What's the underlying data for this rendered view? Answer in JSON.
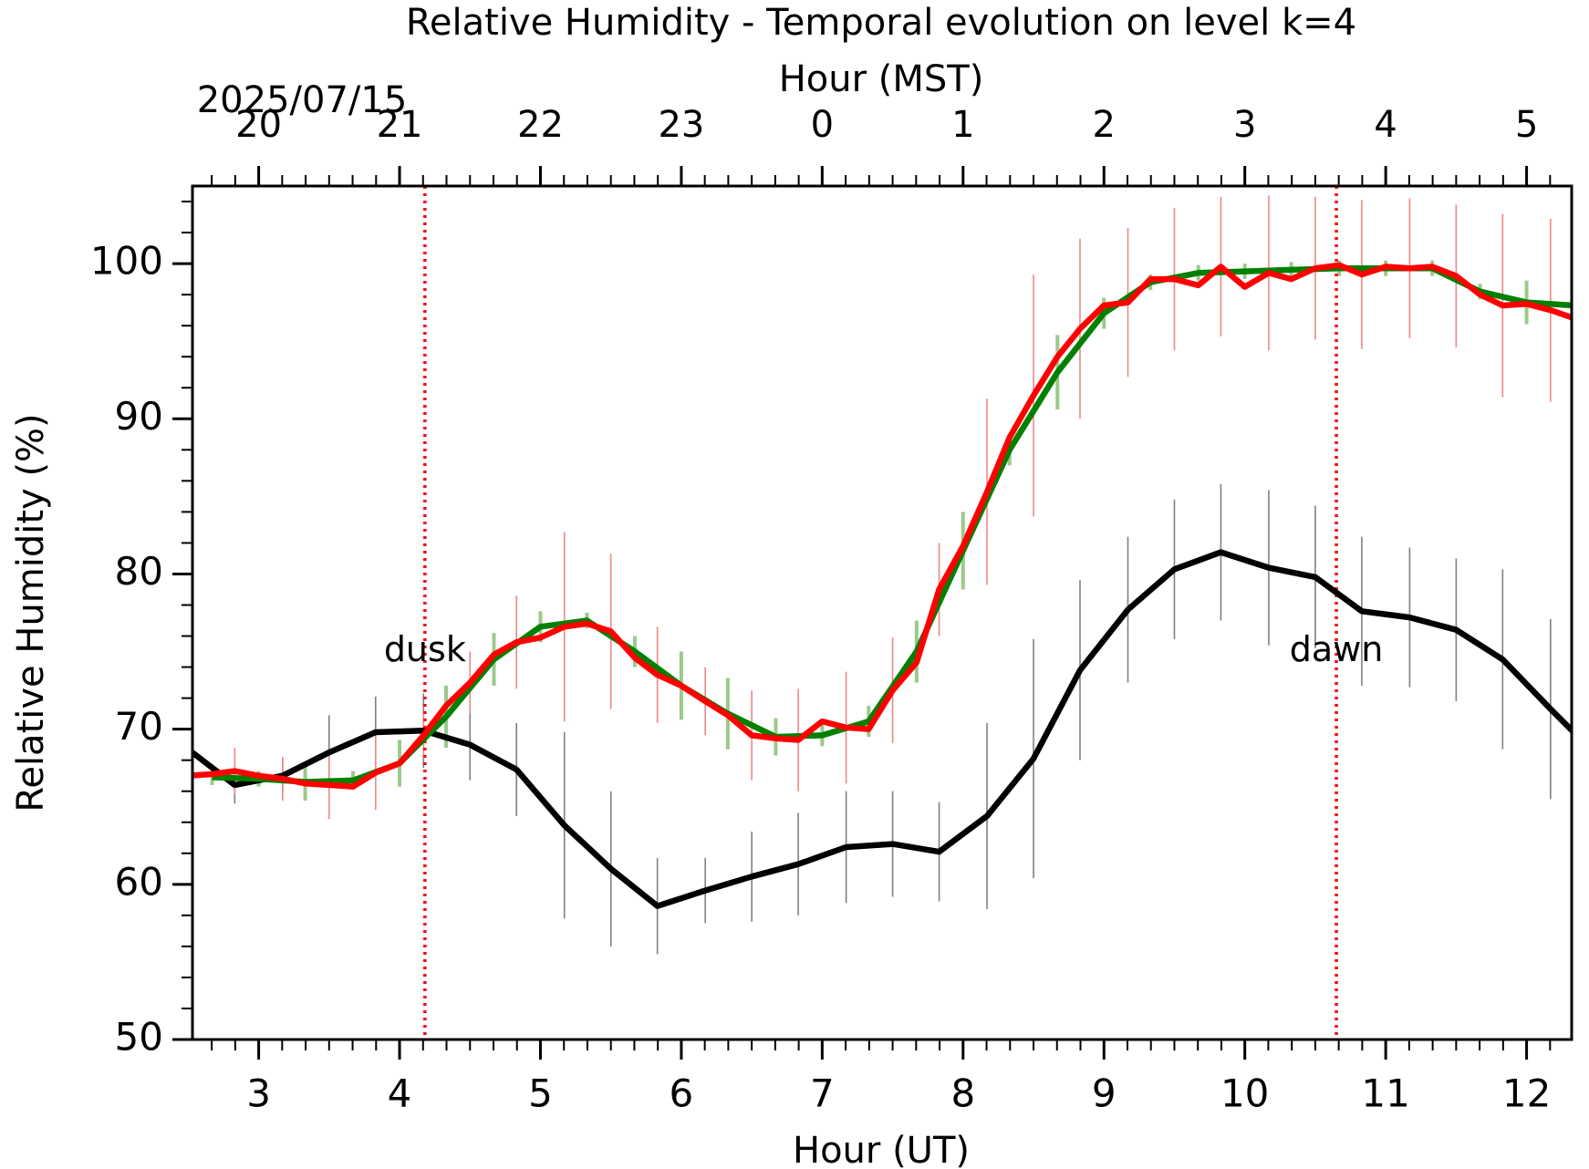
{
  "chart_data": {
    "type": "line",
    "title": "Relative Humidity - Temporal evolution on level k=4",
    "xlabel": "Hour (UT)",
    "ylabel": "Relative Humidity (%)",
    "x2label": "Hour (MST)",
    "date_label": "2025/07/15",
    "xlim": [
      2.53,
      12.32
    ],
    "ylim": [
      50,
      105
    ],
    "xticks": [
      3,
      4,
      5,
      6,
      7,
      8,
      9,
      10,
      11,
      12
    ],
    "x2ticks": [
      {
        "value": 3,
        "label": "20"
      },
      {
        "value": 4,
        "label": "21"
      },
      {
        "value": 5,
        "label": "22"
      },
      {
        "value": 6,
        "label": "23"
      },
      {
        "value": 7,
        "label": "0"
      },
      {
        "value": 8,
        "label": "1"
      },
      {
        "value": 9,
        "label": "2"
      },
      {
        "value": 10,
        "label": "3"
      },
      {
        "value": 11,
        "label": "4"
      },
      {
        "value": 12,
        "label": "5"
      }
    ],
    "yticks": [
      50,
      60,
      70,
      80,
      90,
      100
    ],
    "xminor": 6,
    "yminor": 5,
    "grid": false,
    "series": [
      {
        "color": "#000000",
        "error_color": "#808080",
        "x": [
          2.5,
          2.83,
          3.17,
          3.5,
          3.83,
          4.17,
          4.5,
          4.83,
          5.17,
          5.5,
          5.83,
          6.17,
          6.5,
          6.83,
          7.17,
          7.5,
          7.83,
          8.17,
          8.5,
          8.83,
          9.17,
          9.5,
          9.83,
          10.17,
          10.5,
          10.83,
          11.17,
          11.5,
          11.83,
          12.17,
          12.5
        ],
        "values": [
          68.7,
          66.4,
          67.0,
          68.5,
          69.8,
          69.9,
          69.0,
          67.4,
          63.8,
          61.0,
          58.6,
          59.6,
          60.5,
          61.3,
          62.4,
          62.6,
          62.1,
          64.4,
          68.1,
          73.8,
          77.7,
          80.3,
          81.4,
          80.4,
          79.8,
          77.6,
          77.2,
          76.4,
          74.5,
          71.3,
          68.3
        ],
        "errors": [
          null,
          1.2,
          1.2,
          2.4,
          2.3,
          2.4,
          2.3,
          3.0,
          6.0,
          5.0,
          3.1,
          2.1,
          2.9,
          3.3,
          3.6,
          3.4,
          3.2,
          6.0,
          7.7,
          5.8,
          4.7,
          4.5,
          4.4,
          5.0,
          4.6,
          4.8,
          4.5,
          4.6,
          5.8,
          5.8,
          null
        ]
      },
      {
        "color": "#008000",
        "error_color": "#9bc98b",
        "x": [
          2.67,
          3.0,
          3.33,
          3.67,
          4.0,
          4.33,
          4.67,
          5.0,
          5.33,
          5.67,
          6.0,
          6.33,
          6.67,
          7.0,
          7.33,
          7.67,
          8.0,
          8.33,
          8.67,
          9.0,
          9.33,
          9.67,
          10.0,
          10.33,
          10.67,
          11.0,
          11.33,
          11.67,
          12.0,
          12.33
        ],
        "values": [
          66.9,
          66.8,
          66.6,
          66.7,
          67.8,
          70.8,
          74.5,
          76.6,
          77.0,
          75.0,
          72.8,
          71.0,
          69.5,
          69.6,
          70.5,
          75.0,
          81.5,
          88.0,
          93.0,
          96.8,
          98.8,
          99.4,
          99.5,
          99.6,
          99.7,
          99.7,
          99.7,
          98.2,
          97.5,
          97.3
        ],
        "errors": [
          0.5,
          0.5,
          1.2,
          0.6,
          1.5,
          2.0,
          1.7,
          1.0,
          0.5,
          1.0,
          2.2,
          2.3,
          1.2,
          0.7,
          1.0,
          2.0,
          2.5,
          1.0,
          2.4,
          1.0,
          0.5,
          0.5,
          0.5,
          0.5,
          0.5,
          0.5,
          0.5,
          0.5,
          1.4,
          0.5
        ]
      },
      {
        "color": "#ff0000",
        "error_color": "#ee8888",
        "x": [
          2.5,
          2.67,
          2.83,
          3.0,
          3.17,
          3.33,
          3.5,
          3.67,
          3.83,
          4.0,
          4.17,
          4.33,
          4.5,
          4.67,
          4.83,
          5.0,
          5.17,
          5.33,
          5.5,
          5.67,
          5.83,
          6.0,
          6.17,
          6.33,
          6.5,
          6.67,
          6.83,
          7.0,
          7.17,
          7.33,
          7.5,
          7.67,
          7.83,
          8.0,
          8.17,
          8.33,
          8.5,
          8.67,
          8.83,
          9.0,
          9.17,
          9.33,
          9.5,
          9.67,
          9.83,
          10.0,
          10.17,
          10.33,
          10.5,
          10.67,
          10.83,
          11.0,
          11.17,
          11.33,
          11.5,
          11.67,
          11.83,
          12.0,
          12.17,
          12.33
        ],
        "values": [
          67.0,
          67.1,
          67.3,
          67.0,
          66.8,
          66.5,
          66.4,
          66.3,
          67.2,
          67.8,
          69.6,
          71.5,
          73.0,
          74.8,
          75.6,
          75.9,
          76.6,
          76.8,
          76.3,
          74.6,
          73.5,
          72.8,
          71.8,
          70.9,
          69.6,
          69.4,
          69.3,
          70.5,
          70.1,
          70.0,
          72.5,
          74.3,
          79.0,
          81.8,
          85.3,
          88.8,
          91.5,
          94.0,
          95.8,
          97.3,
          97.5,
          99.0,
          99.0,
          98.6,
          99.8,
          98.5,
          99.4,
          99.0,
          99.7,
          99.9,
          99.3,
          99.8,
          99.7,
          99.8,
          99.2,
          98.0,
          97.3,
          97.4,
          97.0,
          96.5
        ],
        "errors": [
          null,
          null,
          1.5,
          null,
          1.4,
          null,
          2.2,
          null,
          2.4,
          null,
          1.5,
          null,
          2.0,
          null,
          3.0,
          null,
          6.1,
          null,
          5.0,
          null,
          3.1,
          null,
          2.2,
          null,
          2.9,
          null,
          3.3,
          null,
          3.6,
          null,
          3.4,
          null,
          3.0,
          null,
          6.0,
          null,
          7.8,
          null,
          5.8,
          null,
          4.8,
          null,
          4.6,
          null,
          4.5,
          null,
          5.0,
          null,
          4.6,
          null,
          4.8,
          null,
          4.5,
          null,
          4.6,
          null,
          5.9,
          null,
          5.9,
          null
        ]
      }
    ],
    "annotations": [
      {
        "text": "dusk",
        "x": 4.18,
        "y": 75,
        "color": "#ff0000"
      },
      {
        "text": "dawn",
        "x": 10.65,
        "y": 75,
        "color": "#ff0000"
      }
    ]
  }
}
